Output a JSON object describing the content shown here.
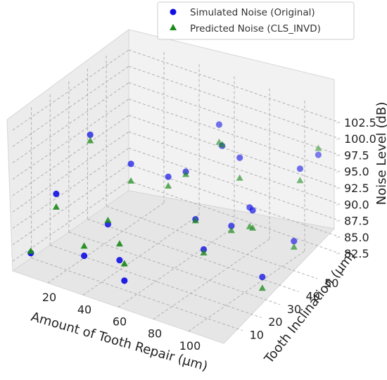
{
  "chart_data": {
    "type": "scatter3d",
    "xlabel": "Amount of Tooth Repair (µm)",
    "ylabel": "Tooth Inclination (µm)",
    "zlabel": "Noise Level (dB)",
    "x_ticks": [
      "20",
      "40",
      "60",
      "80",
      "100"
    ],
    "y_ticks": [
      "10",
      "20",
      "30",
      "40",
      "50"
    ],
    "z_ticks": [
      "82.5",
      "85.0",
      "87.5",
      "90.0",
      "92.5",
      "95.0",
      "97.5",
      "100.0",
      "102.5"
    ],
    "legend_position": "top-right",
    "series": [
      {
        "name": "Simulated Noise (Original)",
        "marker": "circle",
        "color": "#1010e6",
        "points": [
          {
            "x": 5,
            "y": 5,
            "z": 83.2
          },
          {
            "x": 12,
            "y": 12,
            "z": 91.5
          },
          {
            "x": 10,
            "y": 32,
            "z": 96.4
          },
          {
            "x": 30,
            "y": 10,
            "z": 84.1
          },
          {
            "x": 35,
            "y": 18,
            "z": 87.8
          },
          {
            "x": 48,
            "y": 12,
            "z": 84.7
          },
          {
            "x": 55,
            "y": 8,
            "z": 83.0
          },
          {
            "x": 30,
            "y": 35,
            "z": 93.2
          },
          {
            "x": 48,
            "y": 38,
            "z": 92.3
          },
          {
            "x": 58,
            "y": 38,
            "z": 94.0
          },
          {
            "x": 62,
            "y": 52,
            "z": 98.8
          },
          {
            "x": 68,
            "y": 48,
            "z": 96.9
          },
          {
            "x": 78,
            "y": 48,
            "z": 96.0
          },
          {
            "x": 72,
            "y": 30,
            "z": 89.6
          },
          {
            "x": 82,
            "y": 25,
            "z": 86.9
          },
          {
            "x": 90,
            "y": 42,
            "z": 90.7
          },
          {
            "x": 86,
            "y": 36,
            "z": 88.7
          },
          {
            "x": 96,
            "y": 38,
            "z": 91.6
          },
          {
            "x": 108,
            "y": 52,
            "z": 96.3
          },
          {
            "x": 110,
            "y": 30,
            "z": 84.3
          },
          {
            "x": 112,
            "y": 45,
            "z": 87.0
          },
          {
            "x": 112,
            "y": 58,
            "z": 97.6
          }
        ]
      },
      {
        "name": "Predicted Noise (CLS_INVD)",
        "marker": "triangle",
        "color": "#1a8a1a",
        "points": [
          {
            "x": 5,
            "y": 5,
            "z": 83.5
          },
          {
            "x": 12,
            "y": 12,
            "z": 89.5
          },
          {
            "x": 10,
            "y": 32,
            "z": 95.5
          },
          {
            "x": 30,
            "y": 10,
            "z": 85.6
          },
          {
            "x": 35,
            "y": 18,
            "z": 88.4
          },
          {
            "x": 48,
            "y": 12,
            "z": 87.2
          },
          {
            "x": 55,
            "y": 8,
            "z": 85.6
          },
          {
            "x": 30,
            "y": 35,
            "z": 90.6
          },
          {
            "x": 48,
            "y": 38,
            "z": 90.9
          },
          {
            "x": 58,
            "y": 38,
            "z": 93.6
          },
          {
            "x": 62,
            "y": 52,
            "z": 96.1
          },
          {
            "x": 68,
            "y": 48,
            "z": 97.1
          },
          {
            "x": 78,
            "y": 48,
            "z": 92.9
          },
          {
            "x": 72,
            "y": 30,
            "z": 89.4
          },
          {
            "x": 82,
            "y": 25,
            "z": 86.4
          },
          {
            "x": 90,
            "y": 42,
            "z": 87.8
          },
          {
            "x": 86,
            "y": 36,
            "z": 88.0
          },
          {
            "x": 96,
            "y": 38,
            "z": 88.9
          },
          {
            "x": 108,
            "y": 52,
            "z": 94.5
          },
          {
            "x": 110,
            "y": 30,
            "z": 82.6
          },
          {
            "x": 112,
            "y": 45,
            "z": 86.1
          },
          {
            "x": 112,
            "y": 58,
            "z": 98.6
          }
        ]
      }
    ]
  }
}
